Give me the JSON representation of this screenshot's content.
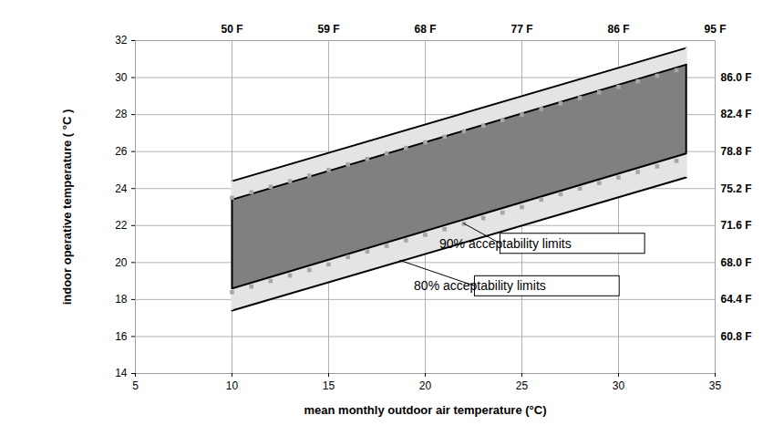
{
  "chart_data": {
    "type": "area",
    "x_label": "mean monthly outdoor air temperature (°C)",
    "y_label": "indoor operative temperature ( °C )",
    "xlim": [
      5,
      35
    ],
    "xticks": [
      5,
      10,
      15,
      20,
      25,
      30,
      35
    ],
    "ylim": [
      14,
      32
    ],
    "yticks": [
      14,
      16,
      18,
      20,
      22,
      24,
      26,
      28,
      30,
      32
    ],
    "x2ticks": [
      {
        "value": 10,
        "label": "50 F"
      },
      {
        "value": 15,
        "label": "59 F"
      },
      {
        "value": 20,
        "label": "68 F"
      },
      {
        "value": 25,
        "label": "77 F"
      },
      {
        "value": 30,
        "label": "86 F"
      },
      {
        "value": 35,
        "label": "95 F"
      }
    ],
    "y2ticks": [
      {
        "value": 16,
        "label": "60.8 F"
      },
      {
        "value": 18,
        "label": "64.4 F"
      },
      {
        "value": 20,
        "label": "68.0 F"
      },
      {
        "value": 22,
        "label": "71.6 F"
      },
      {
        "value": 24,
        "label": "75.2 F"
      },
      {
        "value": 26,
        "label": "78.8 F"
      },
      {
        "value": 28,
        "label": "82.4 F"
      },
      {
        "value": 30,
        "label": "86.0 F"
      }
    ],
    "grid": true,
    "series": [
      {
        "name": "80% acceptability limits",
        "type": "area",
        "color": "#e4e4e4",
        "x": [
          10,
          33.5
        ],
        "lower": [
          17.4,
          24.6
        ],
        "upper": [
          24.4,
          31.6
        ]
      },
      {
        "name": "90% acceptability limits",
        "type": "area",
        "color": "#808080",
        "x": [
          10,
          33.5
        ],
        "lower": [
          18.6,
          25.9
        ],
        "upper": [
          23.4,
          30.7
        ]
      },
      {
        "name": "90% acceptability limits",
        "type": "scatter",
        "marker": "square",
        "color": "#a6a6a6",
        "x": [
          10,
          11,
          12,
          13,
          14,
          15,
          16,
          17,
          18,
          19,
          20,
          21,
          22,
          23,
          24,
          25,
          26,
          27,
          28,
          29,
          30,
          31,
          32,
          33
        ],
        "values": [
          23.5,
          23.8,
          24.1,
          24.4,
          24.7,
          25.0,
          25.3,
          25.6,
          25.9,
          26.2,
          26.5,
          26.8,
          27.1,
          27.4,
          27.7,
          28.0,
          28.3,
          28.6,
          28.9,
          29.2,
          29.5,
          29.8,
          30.1,
          30.4
        ]
      },
      {
        "name": "90% acceptability limits",
        "type": "scatter",
        "marker": "square",
        "color": "#a6a6a6",
        "x": [
          10,
          11,
          12,
          13,
          14,
          15,
          16,
          17,
          18,
          19,
          20,
          21,
          22,
          23,
          24,
          25,
          26,
          27,
          28,
          29,
          30,
          31,
          32,
          33
        ],
        "values": [
          18.4,
          18.7,
          19.0,
          19.3,
          19.6,
          19.9,
          20.3,
          20.6,
          20.9,
          21.2,
          21.5,
          21.8,
          22.1,
          22.4,
          22.7,
          23.0,
          23.4,
          23.7,
          24.0,
          24.3,
          24.6,
          24.9,
          25.2,
          25.5
        ]
      }
    ],
    "annotations": [
      {
        "text": "90% acceptability limits",
        "x": 22,
        "y": 22.1
      },
      {
        "text": "80% acceptability limits",
        "x": 18.7,
        "y": 20.1
      }
    ]
  }
}
